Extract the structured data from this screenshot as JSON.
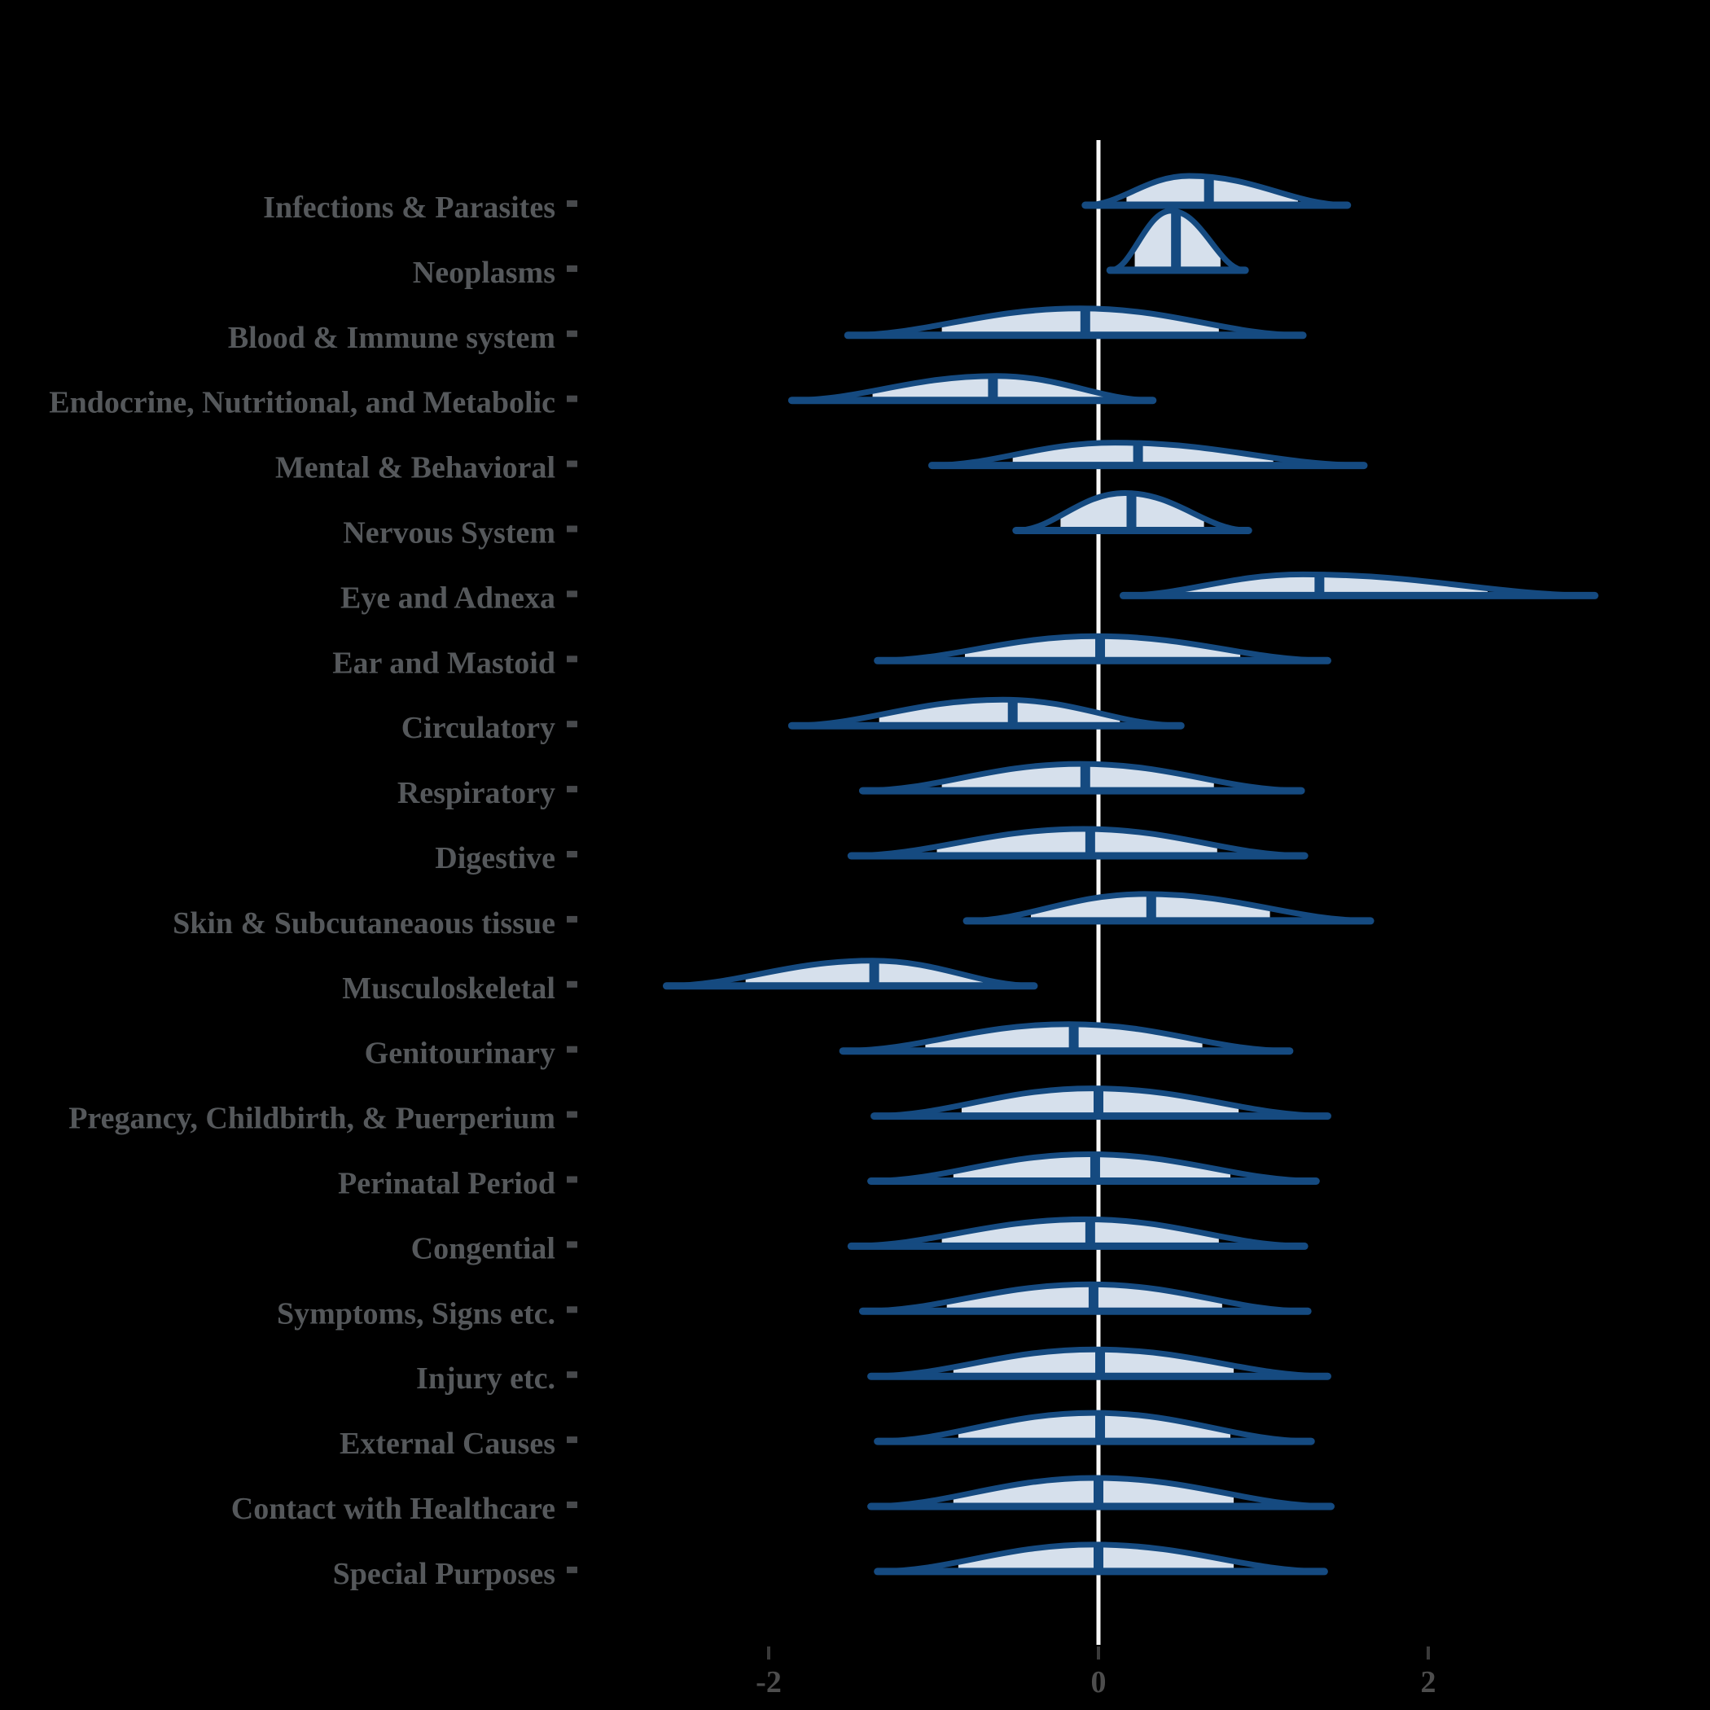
{
  "chart_data": {
    "type": "area",
    "variant": "ridgeline-density-halfeye",
    "title": "",
    "xlabel": "",
    "ylabel": "",
    "x_axis": {
      "ticks": [
        -2,
        0,
        2
      ],
      "tick_labels": [
        "-2",
        "0",
        "2"
      ],
      "range": [
        -3.2,
        3.5
      ],
      "zero_reference_line": 0,
      "grid": false
    },
    "legend": null,
    "rows": [
      {
        "label": "Infections & Parasites",
        "x_min": -0.07,
        "x_max": 1.5,
        "median": 0.67,
        "mode": 0.55,
        "peak_h": 36,
        "ci_lo": 0.17,
        "ci_hi": 1.21
      },
      {
        "label": "Neoplasms",
        "x_min": 0.08,
        "x_max": 0.88,
        "median": 0.47,
        "mode": 0.44,
        "peak_h": 73,
        "ci_lo": 0.22,
        "ci_hi": 0.74
      },
      {
        "label": "Blood & Immune system",
        "x_min": -1.51,
        "x_max": 1.23,
        "median": -0.08,
        "mode": -0.11,
        "peak_h": 33,
        "ci_lo": -0.95,
        "ci_hi": 0.73
      },
      {
        "label": "Endocrine, Nutritional, and Metabolic",
        "x_min": -1.85,
        "x_max": 0.32,
        "median": -0.64,
        "mode": -0.62,
        "peak_h": 30,
        "ci_lo": -1.37,
        "ci_hi": 0.04
      },
      {
        "label": "Mental & Behavioral",
        "x_min": -1.0,
        "x_max": 1.6,
        "median": 0.24,
        "mode": 0.1,
        "peak_h": 28,
        "ci_lo": -0.52,
        "ci_hi": 1.06
      },
      {
        "label": "Nervous System",
        "x_min": -0.49,
        "x_max": 0.9,
        "median": 0.2,
        "mode": 0.16,
        "peak_h": 46,
        "ci_lo": -0.23,
        "ci_hi": 0.64
      },
      {
        "label": "Eye and Adnexa",
        "x_min": 0.16,
        "x_max": 3.0,
        "median": 1.34,
        "mode": 1.24,
        "peak_h": 26,
        "ci_lo": 0.52,
        "ci_hi": 2.36
      },
      {
        "label": "Ear and Mastoid",
        "x_min": -1.33,
        "x_max": 1.38,
        "median": 0.01,
        "mode": -0.01,
        "peak_h": 30,
        "ci_lo": -0.81,
        "ci_hi": 0.86
      },
      {
        "label": "Circulatory",
        "x_min": -1.85,
        "x_max": 0.49,
        "median": -0.52,
        "mode": -0.58,
        "peak_h": 32,
        "ci_lo": -1.33,
        "ci_hi": 0.13
      },
      {
        "label": "Respiratory",
        "x_min": -1.42,
        "x_max": 1.22,
        "median": -0.08,
        "mode": -0.11,
        "peak_h": 33,
        "ci_lo": -0.95,
        "ci_hi": 0.7
      },
      {
        "label": "Digestive",
        "x_min": -1.49,
        "x_max": 1.24,
        "median": -0.05,
        "mode": -0.09,
        "peak_h": 33,
        "ci_lo": -0.98,
        "ci_hi": 0.72
      },
      {
        "label": "Skin & Subcutaneaous tissue",
        "x_min": -0.79,
        "x_max": 1.64,
        "median": 0.32,
        "mode": 0.28,
        "peak_h": 33,
        "ci_lo": -0.41,
        "ci_hi": 1.04
      },
      {
        "label": "Musculoskeletal",
        "x_min": -2.61,
        "x_max": -0.4,
        "median": -1.36,
        "mode": -1.37,
        "peak_h": 31,
        "ci_lo": -2.14,
        "ci_hi": -0.7
      },
      {
        "label": "Genitourinary",
        "x_min": -1.54,
        "x_max": 1.15,
        "median": -0.15,
        "mode": -0.18,
        "peak_h": 33,
        "ci_lo": -1.05,
        "ci_hi": 0.63
      },
      {
        "label": "Pregancy, Childbirth, & Puerperium",
        "x_min": -1.35,
        "x_max": 1.38,
        "median": 0.0,
        "mode": -0.04,
        "peak_h": 34,
        "ci_lo": -0.83,
        "ci_hi": 0.85
      },
      {
        "label": "Perinatal Period",
        "x_min": -1.37,
        "x_max": 1.31,
        "median": -0.02,
        "mode": -0.06,
        "peak_h": 33,
        "ci_lo": -0.88,
        "ci_hi": 0.8
      },
      {
        "label": "Congential",
        "x_min": -1.49,
        "x_max": 1.24,
        "median": -0.05,
        "mode": -0.08,
        "peak_h": 33,
        "ci_lo": -0.95,
        "ci_hi": 0.73
      },
      {
        "label": "Symptoms, Signs etc.",
        "x_min": -1.42,
        "x_max": 1.26,
        "median": -0.03,
        "mode": -0.05,
        "peak_h": 33,
        "ci_lo": -0.92,
        "ci_hi": 0.75
      },
      {
        "label": "Injury etc.",
        "x_min": -1.37,
        "x_max": 1.38,
        "median": 0.01,
        "mode": -0.02,
        "peak_h": 33,
        "ci_lo": -0.88,
        "ci_hi": 0.82
      },
      {
        "label": "External Causes",
        "x_min": -1.33,
        "x_max": 1.28,
        "median": 0.01,
        "mode": -0.03,
        "peak_h": 35,
        "ci_lo": -0.85,
        "ci_hi": 0.8
      },
      {
        "label": "Contact with Healthcare",
        "x_min": -1.37,
        "x_max": 1.4,
        "median": 0.0,
        "mode": -0.02,
        "peak_h": 35,
        "ci_lo": -0.88,
        "ci_hi": 0.82
      },
      {
        "label": "Special Purposes",
        "x_min": -1.33,
        "x_max": 1.36,
        "median": 0.0,
        "mode": -0.03,
        "peak_h": 33,
        "ci_lo": -0.85,
        "ci_hi": 0.82
      }
    ]
  },
  "colors": {
    "background": "#000000",
    "density_outline": "#154a80",
    "density_fill": "#d6e0ec",
    "median_line": "#154a80",
    "row_label": "#55585b",
    "row_marker": "#47494c",
    "axis_tick": "#3a3a3a",
    "axis_tick_label": "#4d4d4d",
    "zero_line": "#f8f8f8"
  }
}
